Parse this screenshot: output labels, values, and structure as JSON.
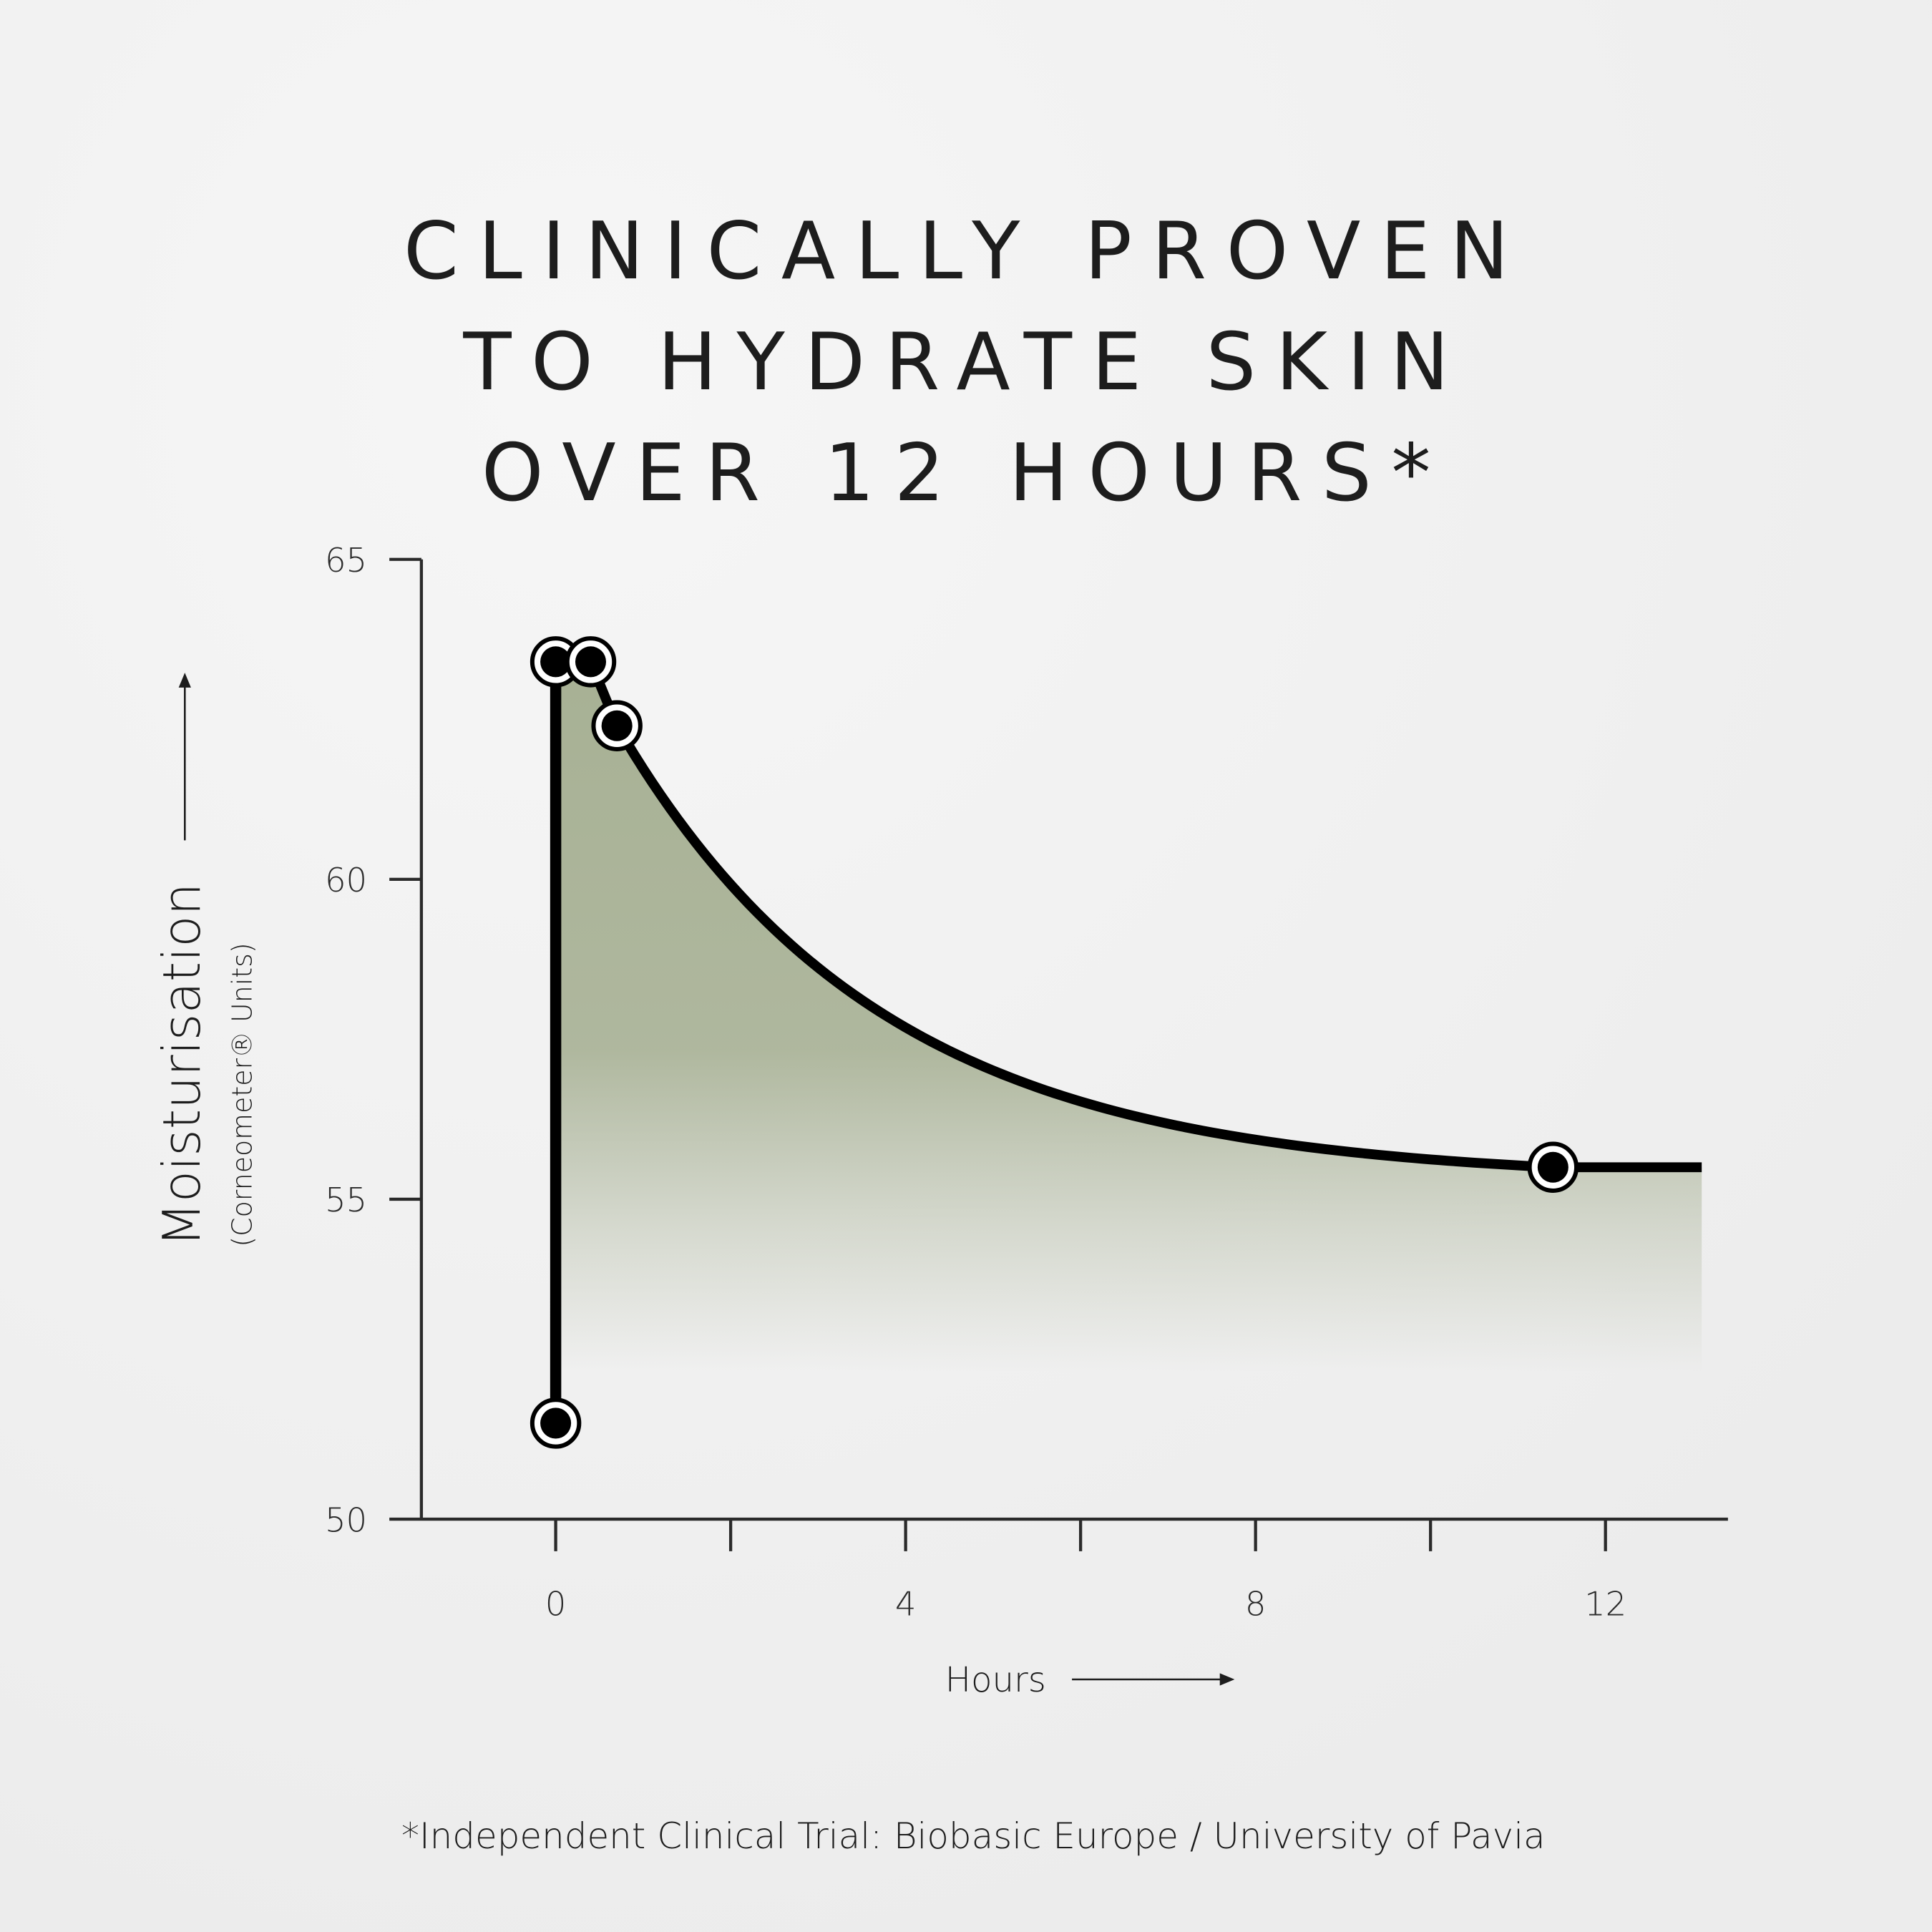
{
  "title_lines": [
    "CLINICALLY PROVEN",
    "TO HYDRATE SKIN",
    "OVER 12 HOURS*"
  ],
  "footnote": "*Independent Clinical Trial: Biobasic Europe / University of Pavia",
  "chart_data": {
    "type": "area",
    "xlabel": "Hours",
    "ylabel": "Moisturisation",
    "ylabel_sub": "(Corneometer® Units)",
    "xlim": [
      -1.5,
      13.4
    ],
    "ylim": [
      50,
      65
    ],
    "x_ticks": [
      0,
      2,
      4,
      6,
      8,
      10,
      12
    ],
    "x_tick_labels": [
      "0",
      "4",
      "8",
      "12"
    ],
    "y_ticks": [
      50,
      55,
      60,
      65
    ],
    "y_tick_labels": [
      "50",
      "55",
      "60",
      "65"
    ],
    "grid": false,
    "series": [
      {
        "points": [
          {
            "x": 0,
            "y": 51.5
          },
          {
            "x": 0,
            "y": 63.4
          },
          {
            "x": 0.4,
            "y": 63.4
          },
          {
            "x": 0.7,
            "y": 62.4
          },
          {
            "x": 11.4,
            "y": 55.5
          }
        ]
      }
    ],
    "colors": {
      "fill": "#a3ad8f",
      "line": "#000000",
      "axis": "#2a2a2a"
    }
  }
}
